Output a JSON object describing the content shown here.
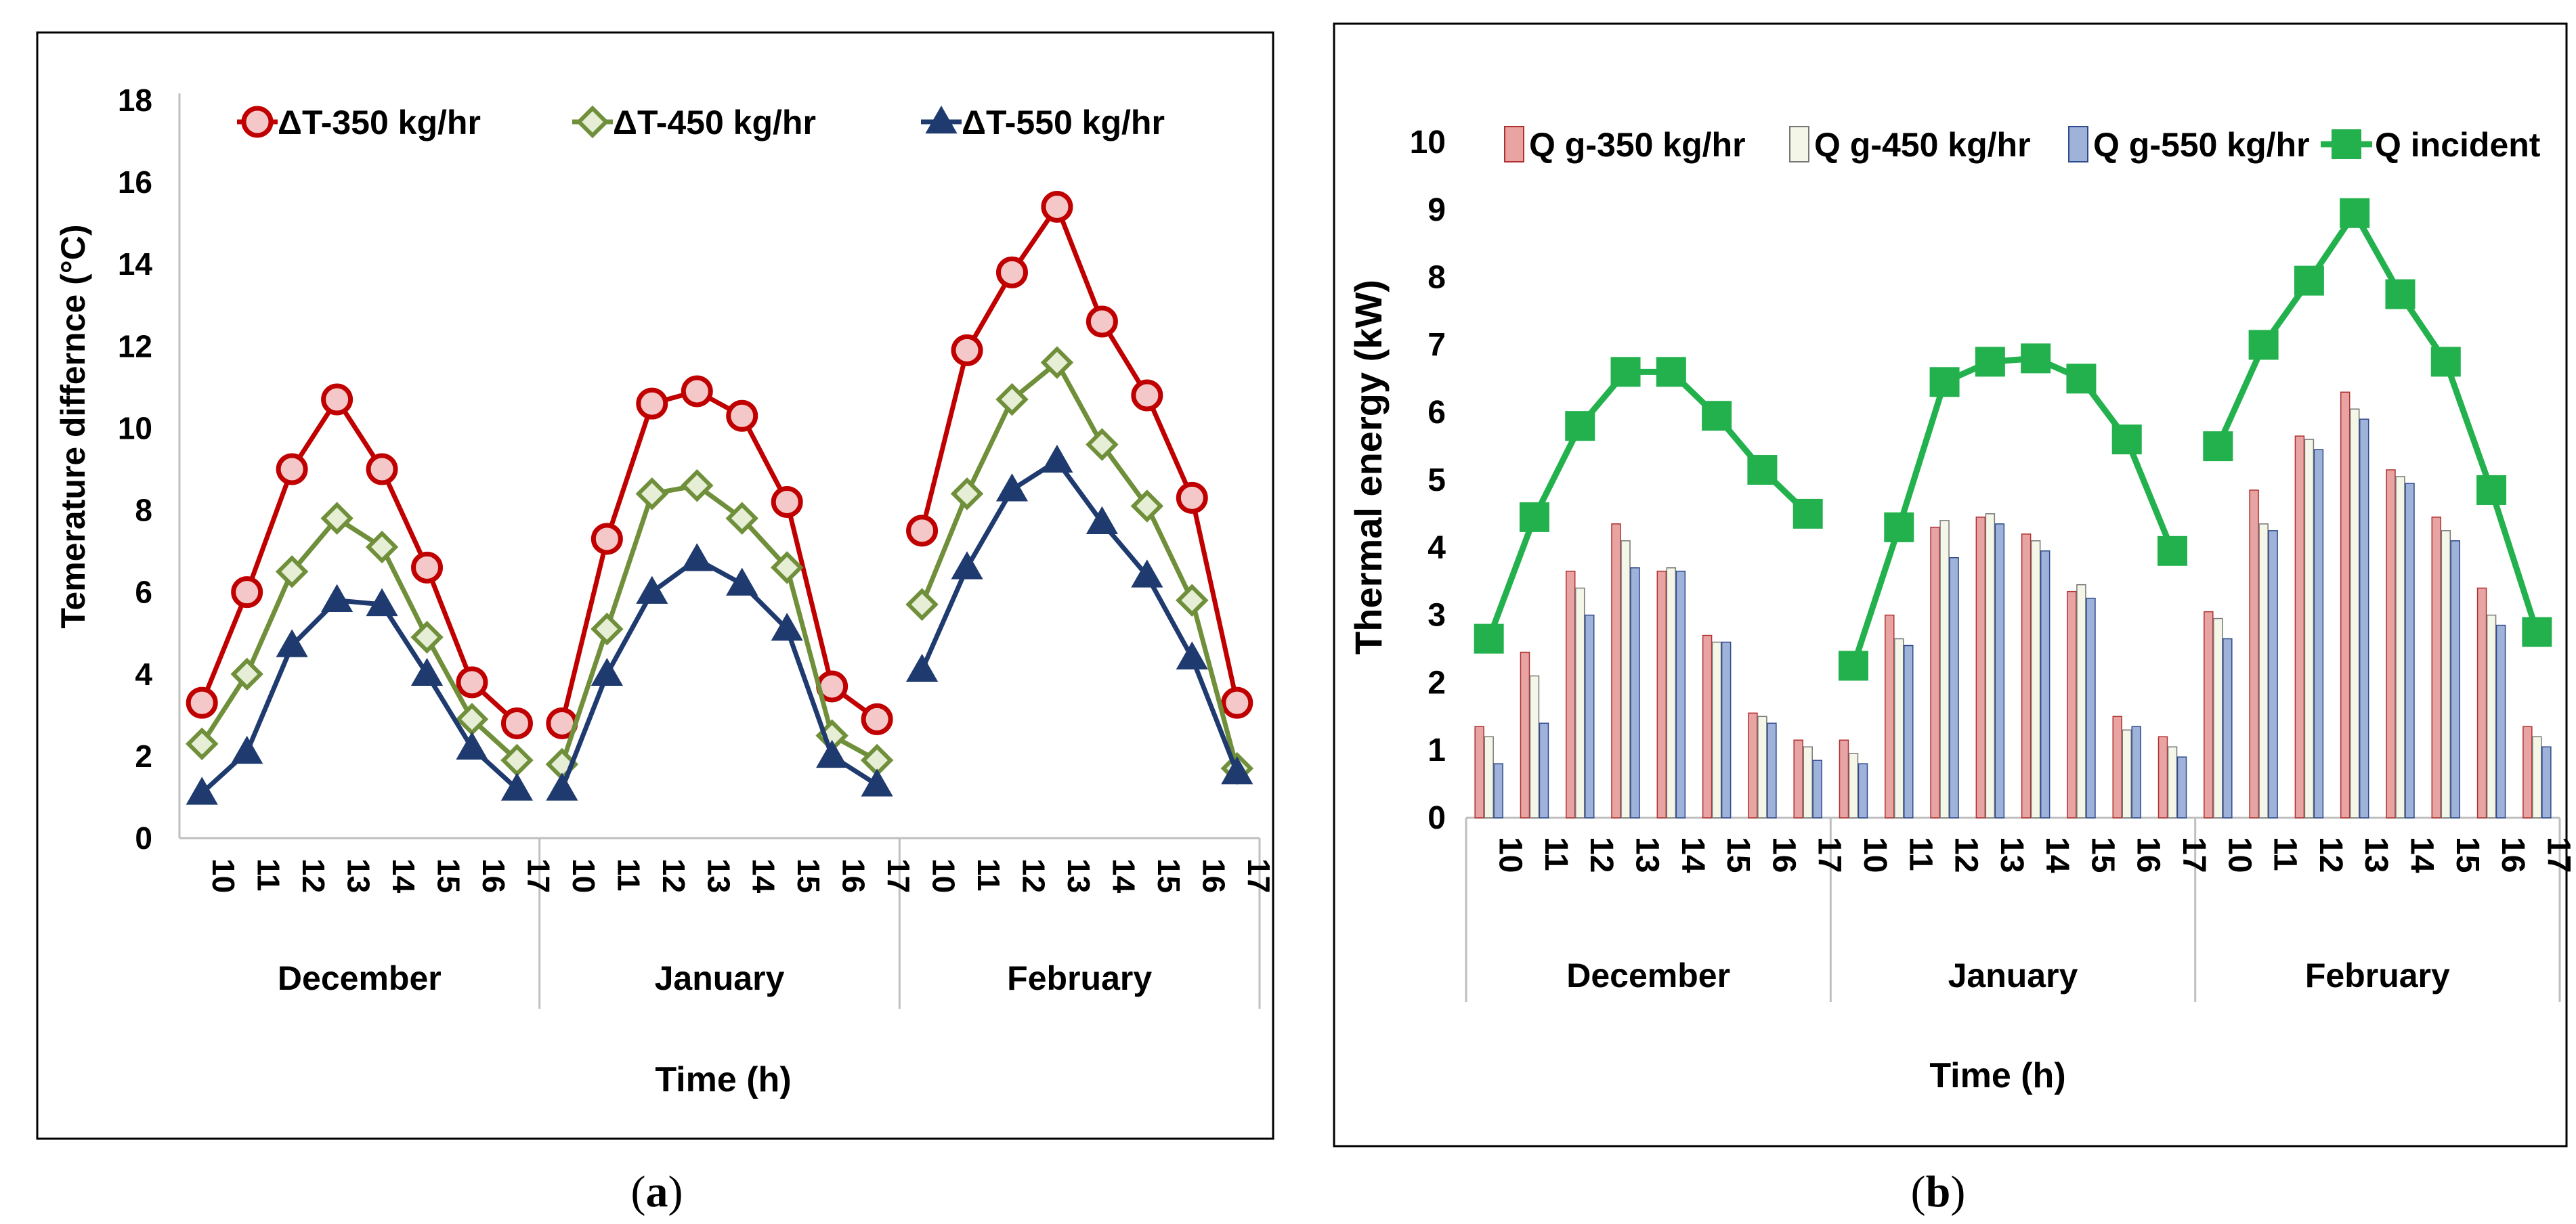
{
  "chart_data": [
    {
      "id": "a",
      "type": "line",
      "caption": "(a)",
      "caption_letter": "a",
      "ylabel": "Temerature differnce (°C)",
      "xlabel": "Time  (h)",
      "ylim": [
        0,
        18
      ],
      "yticks": [
        0,
        2,
        4,
        6,
        8,
        10,
        12,
        14,
        16,
        18
      ],
      "groups": [
        "December",
        "January",
        "February"
      ],
      "hours": [
        "10",
        "11",
        "12",
        "13",
        "14",
        "15",
        "16",
        "17"
      ],
      "series": [
        {
          "name": "ΔT-350 kg/hr",
          "color": "#c00000",
          "marker": "circle",
          "values": [
            [
              3.3,
              6.0,
              9.0,
              10.7,
              9.0,
              6.6,
              3.8,
              2.8
            ],
            [
              2.8,
              7.3,
              10.6,
              10.9,
              10.3,
              8.2,
              3.7,
              2.9
            ],
            [
              7.5,
              11.9,
              13.8,
              15.4,
              12.6,
              10.8,
              8.3,
              3.3
            ]
          ]
        },
        {
          "name": "ΔT-450 kg/hr",
          "color": "#6f8f3a",
          "marker": "diamond",
          "values": [
            [
              2.3,
              4.0,
              6.5,
              7.8,
              7.1,
              4.9,
              2.9,
              1.9
            ],
            [
              1.8,
              5.1,
              8.4,
              8.6,
              7.8,
              6.6,
              2.5,
              1.9
            ],
            [
              5.7,
              8.4,
              10.7,
              11.6,
              9.6,
              8.1,
              5.8,
              1.7
            ]
          ]
        },
        {
          "name": "ΔT-550 kg/hr",
          "color": "#1f3a6e",
          "marker": "triangle",
          "values": [
            [
              1.1,
              2.1,
              4.7,
              5.8,
              5.7,
              4.0,
              2.2,
              1.2
            ],
            [
              1.2,
              4.0,
              6.0,
              6.8,
              6.2,
              5.1,
              2.0,
              1.3
            ],
            [
              4.1,
              6.6,
              8.5,
              9.2,
              7.7,
              6.4,
              4.4,
              1.6
            ]
          ]
        }
      ]
    },
    {
      "id": "b",
      "type": "bar+line",
      "caption": "(b)",
      "caption_letter": "b",
      "ylabel": "Thermal energy (kW)",
      "xlabel": "Time  (h)",
      "ylim": [
        0,
        10
      ],
      "yticks": [
        0,
        1,
        2,
        3,
        4,
        5,
        6,
        7,
        8,
        9,
        10
      ],
      "groups": [
        "December",
        "January",
        "February"
      ],
      "hours": [
        "10",
        "11",
        "12",
        "13",
        "14",
        "15",
        "16",
        "17"
      ],
      "bar_series": [
        {
          "name": "Q g-350 kg/hr",
          "fill": "#e8a3a3",
          "stroke": "#b03030",
          "values": [
            [
              1.35,
              2.45,
              3.65,
              4.35,
              3.65,
              2.7,
              1.55,
              1.15
            ],
            [
              1.15,
              3.0,
              4.3,
              4.45,
              4.2,
              3.35,
              1.5,
              1.2
            ],
            [
              3.05,
              4.85,
              5.65,
              6.3,
              5.15,
              4.45,
              3.4,
              1.35
            ]
          ]
        },
        {
          "name": "Q g-450 kg/hr",
          "fill": "#f4f6e8",
          "stroke": "#777777",
          "values": [
            [
              1.2,
              2.1,
              3.4,
              4.1,
              3.7,
              2.6,
              1.5,
              1.05
            ],
            [
              0.95,
              2.65,
              4.4,
              4.5,
              4.1,
              3.45,
              1.3,
              1.05
            ],
            [
              2.95,
              4.35,
              5.6,
              6.05,
              5.05,
              4.25,
              3.0,
              1.2
            ]
          ]
        },
        {
          "name": "Q g-550 kg/hr",
          "fill": "#9fb2d9",
          "stroke": "#2e4b8c",
          "values": [
            [
              0.8,
              1.4,
              3.0,
              3.7,
              3.65,
              2.6,
              1.4,
              0.85
            ],
            [
              0.8,
              2.55,
              3.85,
              4.35,
              3.95,
              3.25,
              1.35,
              0.9
            ],
            [
              2.65,
              4.25,
              5.45,
              5.9,
              4.95,
              4.1,
              2.85,
              1.05
            ]
          ]
        }
      ],
      "line_series": {
        "name": "Q incident",
        "color": "#22b14c",
        "marker": "square",
        "values": [
          [
            2.65,
            4.45,
            5.8,
            6.6,
            6.6,
            5.95,
            5.15,
            4.5
          ],
          [
            2.25,
            4.3,
            6.45,
            6.75,
            6.8,
            6.5,
            5.6,
            3.95
          ],
          [
            5.5,
            7.0,
            7.95,
            8.95,
            7.75,
            6.75,
            4.85,
            2.75
          ]
        ]
      }
    }
  ]
}
